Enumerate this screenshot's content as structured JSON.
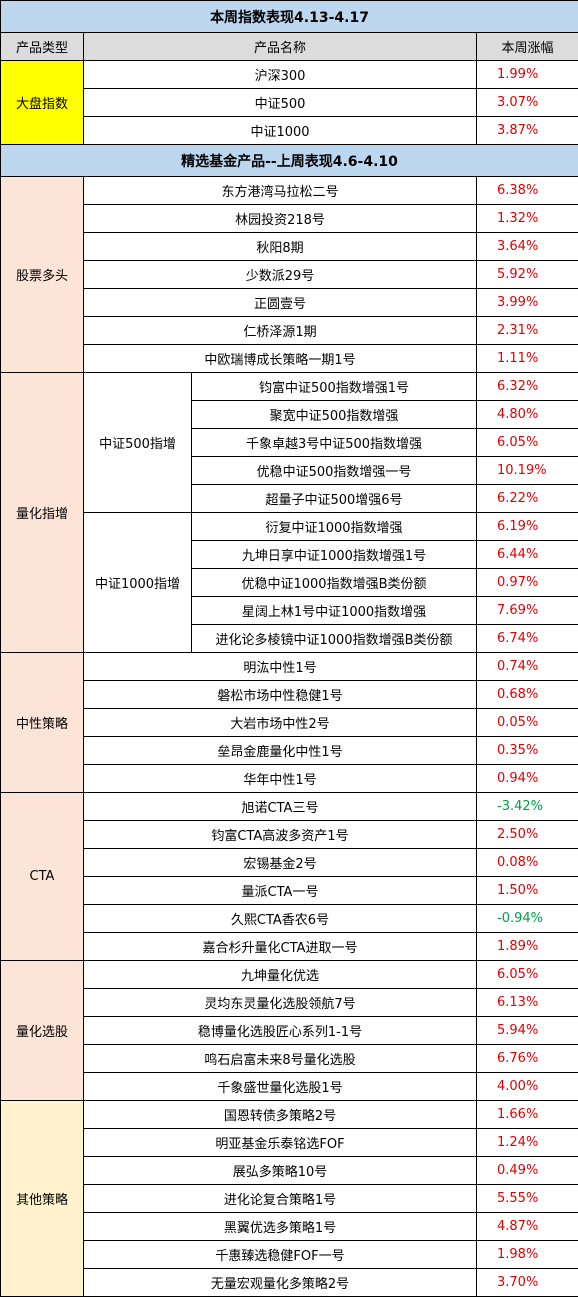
{
  "title1": "本周指数表现4.13-4.17",
  "headers": {
    "type": "产品类型",
    "name": "产品名称",
    "change": "本周涨幅"
  },
  "index_category": "大盘指数",
  "indices": [
    {
      "name": "沪深300",
      "change": "1.99%"
    },
    {
      "name": "中证500",
      "change": "3.07%"
    },
    {
      "name": "中证1000",
      "change": "3.87%"
    }
  ],
  "title2": "精选基金产品--上周表现4.6-4.10",
  "stock": {
    "category": "股票多头",
    "items": [
      {
        "name": "东方港湾马拉松二号",
        "change": "6.38%"
      },
      {
        "name": "林园投资218号",
        "change": "1.32%"
      },
      {
        "name": "秋阳8期",
        "change": "3.64%"
      },
      {
        "name": "少数派29号",
        "change": "5.92%"
      },
      {
        "name": "正圆壹号",
        "change": "3.99%"
      },
      {
        "name": "仁桥泽源1期",
        "change": "2.31%"
      },
      {
        "name": "中欧瑞博成长策略一期1号",
        "change": "1.11%"
      }
    ]
  },
  "quant": {
    "category": "量化指增",
    "sub500": {
      "label": "中证500指增",
      "items": [
        {
          "name": "钧富中证500指数增强1号",
          "change": "6.32%"
        },
        {
          "name": "聚宽中证500指数增强",
          "change": "4.80%"
        },
        {
          "name": "千象卓越3号中证500指数增强",
          "change": "6.05%"
        },
        {
          "name": "优稳中证500指数增强一号",
          "change": "10.19%"
        },
        {
          "name": "超量子中证500增强6号",
          "change": "6.22%"
        }
      ]
    },
    "sub1000": {
      "label": "中证1000指增",
      "items": [
        {
          "name": "衍复中证1000指数增强",
          "change": "6.19%"
        },
        {
          "name": "九坤日享中证1000指数增强1号",
          "change": "6.44%"
        },
        {
          "name": "优稳中证1000指数增强B类份额",
          "change": "0.97%"
        },
        {
          "name": "星阔上林1号中证1000指数增强",
          "change": "7.69%"
        },
        {
          "name": "进化论多棱镜中证1000指数增强B类份额",
          "change": "6.74%"
        }
      ]
    }
  },
  "neutral": {
    "category": "中性策略",
    "items": [
      {
        "name": "明汯中性1号",
        "change": "0.74%"
      },
      {
        "name": "磐松市场中性稳健1号",
        "change": "0.68%"
      },
      {
        "name": "大岩市场中性2号",
        "change": "0.05%"
      },
      {
        "name": "垒昂金鹿量化中性1号",
        "change": "0.35%"
      },
      {
        "name": "华年中性1号",
        "change": "0.94%"
      }
    ]
  },
  "cta": {
    "category": "CTA",
    "items": [
      {
        "name": "旭诺CTA三号",
        "change": "-3.42%"
      },
      {
        "name": "钧富CTA高波多资产1号",
        "change": "2.50%"
      },
      {
        "name": "宏锡基金2号",
        "change": "0.08%"
      },
      {
        "name": "量派CTA一号",
        "change": "1.50%"
      },
      {
        "name": "久熙CTA香农6号",
        "change": "-0.94%"
      },
      {
        "name": "嘉合杉升量化CTA进取一号",
        "change": "1.89%"
      }
    ]
  },
  "selection": {
    "category": "量化选股",
    "items": [
      {
        "name": "九坤量化优选",
        "change": "6.05%"
      },
      {
        "name": "灵均东灵量化选股领航7号",
        "change": "6.13%"
      },
      {
        "name": "稳博量化选股匠心系列1-1号",
        "change": "5.94%"
      },
      {
        "name": "鸣石启富未来8号量化选股",
        "change": "6.76%"
      },
      {
        "name": "千象盛世量化选股1号",
        "change": "4.00%"
      }
    ]
  },
  "other": {
    "category": "其他策略",
    "items": [
      {
        "name": "国恩转债多策略2号",
        "change": "1.66%"
      },
      {
        "name": "明亚基金乐泰铭选FOF",
        "change": "1.24%"
      },
      {
        "name": "展弘多策略10号",
        "change": "0.49%"
      },
      {
        "name": "进化论复合策略1号",
        "change": "5.55%"
      },
      {
        "name": "黑翼优选多策略1号",
        "change": "4.87%"
      },
      {
        "name": "千惠臻选稳健FOF一号",
        "change": "1.98%"
      },
      {
        "name": "无量宏观量化多策略2号",
        "change": "3.70%"
      }
    ]
  },
  "colors": {
    "positive": "#e00000",
    "negative": "#00a040",
    "title_bg": "#bdd7ee",
    "header_bg": "#dcdcdc",
    "index_bg": "#ffff00",
    "category_bg": "#fce4d6",
    "other_bg": "#fff2cc"
  }
}
